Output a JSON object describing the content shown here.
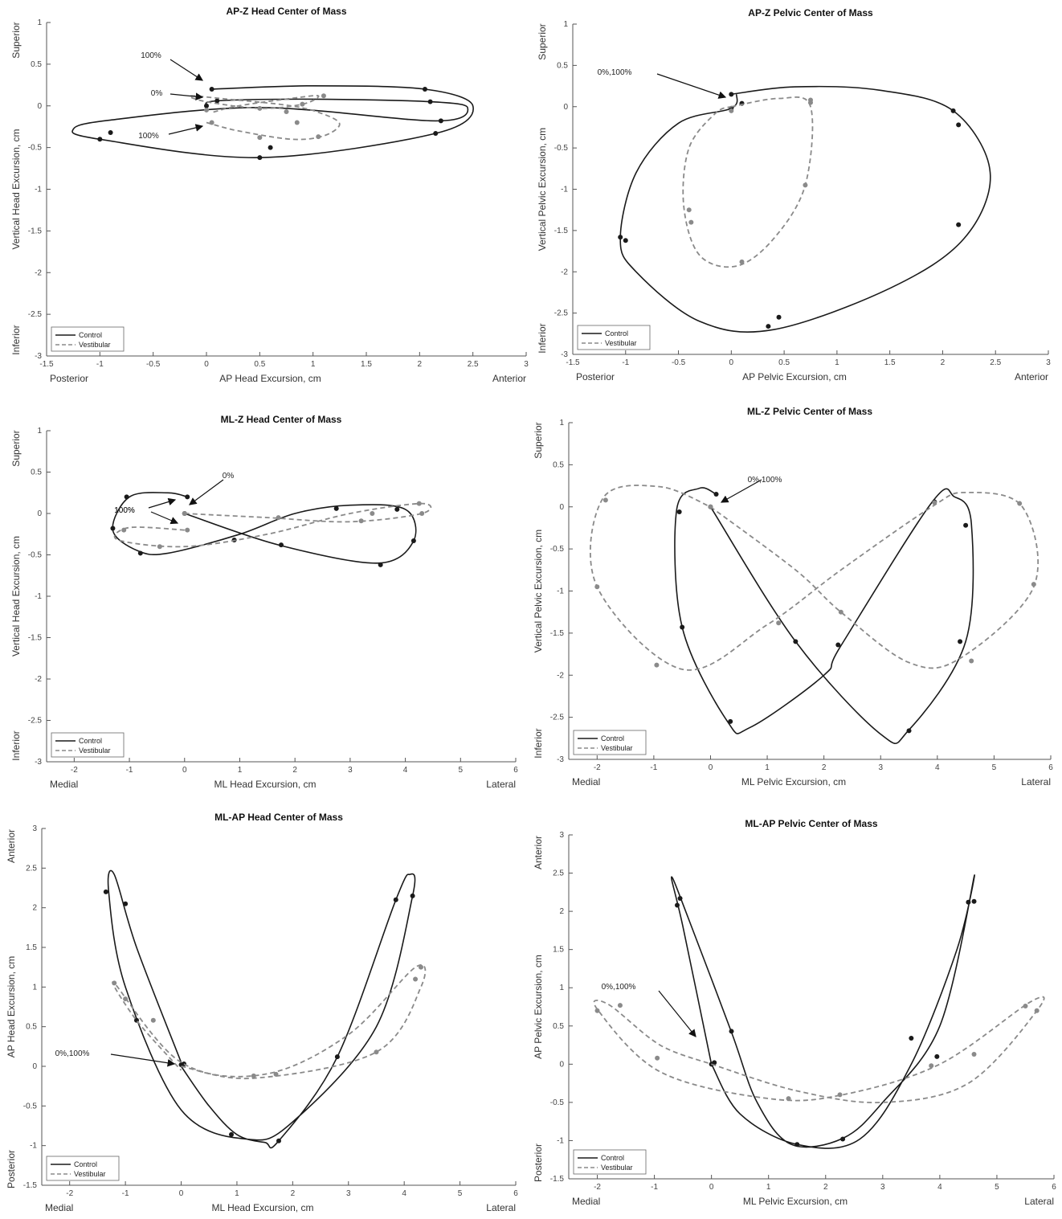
{
  "chart_data": [
    {
      "type": "line",
      "title": "AP-Z Head Center of Mass",
      "xlabel": "AP  Head Excursion, cm",
      "ylabel": "Vertical Head Excursion, cm",
      "x_dir_labels": [
        "Posterior",
        "Anterior"
      ],
      "y_dir_labels": [
        "Superior",
        "Inferior"
      ],
      "xlim": [
        -1.5,
        3
      ],
      "ylim": [
        -3,
        1
      ],
      "xticks": [
        -1.5,
        -1,
        -0.5,
        0,
        0.5,
        1,
        1.5,
        2,
        2.5,
        3
      ],
      "yticks": [
        -3,
        -2.5,
        -2,
        -1.5,
        -1,
        -0.5,
        0,
        0.5,
        1
      ],
      "grid": false,
      "legend_position": "bottom-left",
      "series": [
        {
          "name": "Control",
          "style": "solid",
          "color": "#1a1a1a",
          "x": [
            0.05,
            1.0,
            2.05,
            2.5,
            2.15,
            0.5,
            -1.0,
            -1.25,
            -0.9,
            0.5,
            2.15,
            2.45,
            2.1,
            1.0,
            0.1,
            0.0
          ],
          "y": [
            0.2,
            0.24,
            0.2,
            0.0,
            -0.33,
            -0.62,
            -0.4,
            -0.28,
            -0.17,
            -0.02,
            -0.18,
            -0.02,
            0.05,
            0.08,
            0.06,
            0.0
          ],
          "markers_x": [
            0.05,
            2.05,
            2.15,
            0.5,
            -1.0,
            -0.9,
            0.6,
            2.2,
            2.1,
            0.1,
            0.0
          ],
          "markers_y": [
            0.2,
            0.2,
            -0.33,
            -0.62,
            -0.4,
            -0.32,
            -0.5,
            -0.18,
            0.05,
            0.06,
            0.0
          ]
        },
        {
          "name": "Vestibular",
          "style": "dashed",
          "color": "#8a8a8a",
          "x": [
            0.0,
            0.3,
            0.8,
            1.1,
            1.25,
            1.1,
            0.8,
            0.2,
            -0.15,
            0.0,
            0.5,
            0.9,
            1.05,
            0.8,
            0.3,
            0.05
          ],
          "y": [
            -0.2,
            -0.3,
            -0.4,
            -0.36,
            -0.22,
            -0.1,
            0.0,
            0.08,
            0.12,
            0.05,
            -0.03,
            0.02,
            0.12,
            0.09,
            0.0,
            -0.08
          ],
          "markers_x": [
            0.05,
            0.5,
            0.85,
            1.05,
            0.75,
            0.0,
            0.5,
            0.9,
            1.1
          ],
          "markers_y": [
            -0.2,
            -0.38,
            -0.2,
            -0.37,
            -0.07,
            -0.05,
            -0.03,
            0.02,
            0.12
          ]
        }
      ],
      "annotations": [
        "100%",
        "0%",
        "100%"
      ]
    },
    {
      "type": "line",
      "title": "AP-Z Pelvic Center of Mass",
      "xlabel": "AP  Pelvic Excursion, cm",
      "ylabel": "Vertical Pelvic Excursion, cm",
      "x_dir_labels": [
        "Posterior",
        "Anterior"
      ],
      "y_dir_labels": [
        "Superior",
        "Inferior"
      ],
      "xlim": [
        -1.5,
        3
      ],
      "ylim": [
        -3,
        1
      ],
      "xticks": [
        -1.5,
        -1,
        -0.5,
        0,
        0.5,
        1,
        1.5,
        2,
        2.5,
        3
      ],
      "yticks": [
        -3,
        -2.5,
        -2,
        -1.5,
        -1,
        -0.5,
        0,
        0.5,
        1
      ],
      "grid": false,
      "legend_position": "bottom-left",
      "series": [
        {
          "name": "Control",
          "style": "solid",
          "color": "#1a1a1a",
          "x": [
            0.0,
            0.6,
            1.4,
            2.1,
            2.45,
            2.2,
            1.5,
            0.4,
            -0.3,
            -0.9,
            -1.05,
            -0.9,
            -0.5,
            0.0,
            0.05
          ],
          "y": [
            0.15,
            0.24,
            0.2,
            -0.05,
            -0.8,
            -1.6,
            -2.2,
            -2.7,
            -2.6,
            -2.0,
            -1.6,
            -0.8,
            -0.2,
            -0.02,
            0.15
          ],
          "markers_x": [
            0.0,
            2.1,
            2.15,
            2.15,
            0.45,
            0.35,
            -1.05,
            -1.0,
            0.0,
            0.1
          ],
          "markers_y": [
            0.15,
            -0.05,
            -0.22,
            -1.43,
            -2.55,
            -2.66,
            -1.58,
            -1.62,
            -0.02,
            0.04
          ]
        },
        {
          "name": "Vestibular",
          "style": "dashed",
          "color": "#8a8a8a",
          "x": [
            0.0,
            0.45,
            0.75,
            0.7,
            0.4,
            0.05,
            -0.3,
            -0.45,
            -0.4,
            -0.15,
            0.0
          ],
          "y": [
            0.0,
            0.1,
            0.0,
            -0.95,
            -1.6,
            -1.93,
            -1.8,
            -1.2,
            -0.5,
            -0.08,
            0.0
          ],
          "markers_x": [
            0.0,
            0.75,
            0.7,
            0.1,
            -0.38,
            -0.4,
            0.75
          ],
          "markers_y": [
            -0.05,
            0.05,
            -0.95,
            -1.88,
            -1.4,
            -1.25,
            0.08
          ]
        }
      ],
      "annotations": [
        "0%,100%"
      ]
    },
    {
      "type": "line",
      "title": "ML-Z Head Center of Mass",
      "xlabel": "ML  Head Excursion, cm",
      "ylabel": "Vertical Head Excursion, cm",
      "x_dir_labels": [
        "Medial",
        "Lateral"
      ],
      "y_dir_labels": [
        "Superior",
        "Inferior"
      ],
      "xlim": [
        -2.5,
        6
      ],
      "ylim": [
        -3,
        1
      ],
      "xticks": [
        -2,
        -1,
        0,
        1,
        2,
        3,
        4,
        5,
        6
      ],
      "yticks": [
        -3,
        -2.5,
        -2,
        -1.5,
        -1,
        -0.5,
        0,
        0.5,
        1
      ],
      "grid": false,
      "legend_position": "bottom-left",
      "series": [
        {
          "name": "Control",
          "style": "solid",
          "color": "#1a1a1a",
          "x": [
            0.0,
            1.7,
            3.5,
            4.15,
            4.0,
            3.0,
            2.0,
            1.0,
            -0.3,
            -0.85,
            -1.3,
            -1.0,
            -0.3,
            0.05
          ],
          "y": [
            0.0,
            -0.38,
            -0.6,
            -0.33,
            0.05,
            0.1,
            0.0,
            -0.25,
            -0.48,
            -0.45,
            -0.2,
            0.2,
            0.25,
            0.2
          ],
          "markers_x": [
            0.0,
            1.75,
            3.55,
            4.15,
            3.85,
            2.75,
            0.9,
            -0.8,
            -1.3,
            -1.05,
            0.05
          ],
          "markers_y": [
            0.0,
            -0.38,
            -0.62,
            -0.33,
            0.05,
            0.06,
            -0.32,
            -0.48,
            -0.18,
            0.2,
            0.2
          ]
        },
        {
          "name": "Vestibular",
          "style": "dashed",
          "color": "#8a8a8a",
          "x": [
            0.0,
            1.5,
            3.0,
            4.3,
            4.3,
            3.0,
            1.5,
            0.0,
            -1.2,
            -1.0,
            0.0
          ],
          "y": [
            0.0,
            -0.05,
            -0.1,
            0.0,
            0.12,
            0.0,
            -0.25,
            -0.4,
            -0.32,
            -0.17,
            -0.2
          ],
          "markers_x": [
            0.0,
            1.7,
            3.2,
            4.3,
            4.25,
            3.4,
            -0.45,
            -1.1,
            0.05
          ],
          "markers_y": [
            0.0,
            -0.05,
            -0.09,
            0.0,
            0.12,
            0.0,
            -0.4,
            -0.2,
            -0.2
          ]
        }
      ],
      "annotations": [
        "0%",
        "100%"
      ]
    },
    {
      "type": "line",
      "title": "ML-Z Pelvic Center of Mass",
      "xlabel": "ML  Pelvic Excursion, cm",
      "ylabel": "Vertical Pelvic Excursion, cm",
      "x_dir_labels": [
        "Medial",
        "Lateral"
      ],
      "y_dir_labels": [
        "Superior",
        "Inferior"
      ],
      "xlim": [
        -2.5,
        6
      ],
      "ylim": [
        -3,
        1
      ],
      "xticks": [
        -2,
        -1,
        0,
        1,
        2,
        3,
        4,
        5,
        6
      ],
      "yticks": [
        -3,
        -2.5,
        -2,
        -1.5,
        -1,
        -0.5,
        0,
        0.5,
        1
      ],
      "grid": false,
      "legend_position": "bottom-left",
      "series": [
        {
          "name": "Control",
          "style": "solid",
          "color": "#1a1a1a",
          "x": [
            0.0,
            1.5,
            3.0,
            3.5,
            4.5,
            4.6,
            4.3,
            3.9,
            2.3,
            2.0,
            0.7,
            0.3,
            -0.5,
            -0.6,
            -0.2,
            0.1
          ],
          "y": [
            0.0,
            -1.6,
            -2.7,
            -2.65,
            -1.6,
            -0.2,
            0.12,
            0.05,
            -1.65,
            -2.0,
            -2.62,
            -2.55,
            -1.43,
            -0.05,
            0.22,
            0.15
          ],
          "markers_x": [
            0.0,
            1.5,
            3.5,
            4.4,
            4.5,
            3.95,
            2.25,
            0.35,
            -0.5,
            -0.55,
            0.1
          ],
          "markers_y": [
            0.0,
            -1.6,
            -2.66,
            -1.6,
            -0.22,
            0.06,
            -1.64,
            -2.55,
            -1.43,
            -0.06,
            0.15
          ]
        },
        {
          "name": "Vestibular",
          "style": "dashed",
          "color": "#8a8a8a",
          "x": [
            0.0,
            1.5,
            2.3,
            3.5,
            4.4,
            5.7,
            5.5,
            4.5,
            3.9,
            2.3,
            1.0,
            -0.5,
            -2.0,
            -1.9,
            -0.9,
            0.0
          ],
          "y": [
            0.0,
            -0.75,
            -1.25,
            -1.85,
            -1.8,
            -0.95,
            0.0,
            0.17,
            0.0,
            -0.75,
            -1.4,
            -1.93,
            -0.95,
            0.1,
            0.24,
            0.0
          ],
          "markers_x": [
            0.0,
            2.3,
            4.6,
            5.7,
            5.45,
            3.95,
            1.2,
            -0.95,
            -2.0,
            -1.85
          ],
          "markers_y": [
            0.0,
            -1.25,
            -1.83,
            -0.92,
            0.04,
            0.05,
            -1.38,
            -1.88,
            -0.95,
            0.08
          ]
        }
      ],
      "annotations": [
        "0%,100%"
      ]
    },
    {
      "type": "line",
      "title": "ML-AP Head Center of Mass",
      "xlabel": "ML  Head Excursion, cm",
      "ylabel": "AP Head Excursion, cm",
      "x_dir_labels": [
        "Medial",
        "Lateral"
      ],
      "y_dir_labels": [
        "Anterior",
        "Posterior"
      ],
      "xlim": [
        -2.5,
        6
      ],
      "ylim": [
        -1.5,
        3
      ],
      "xticks": [
        -2,
        -1,
        0,
        1,
        2,
        3,
        4,
        5,
        6
      ],
      "yticks": [
        -1.5,
        -1,
        -0.5,
        0,
        0.5,
        1,
        1.5,
        2,
        2.5,
        3
      ],
      "grid": false,
      "legend_position": "bottom-left",
      "series": [
        {
          "name": "Control",
          "style": "solid",
          "color": "#1a1a1a",
          "x": [
            0.0,
            0.5,
            1.0,
            1.5,
            1.75,
            2.8,
            3.85,
            4.1,
            4.15,
            3.5,
            2.0,
            1.2,
            0.0,
            -1.0,
            -1.3,
            -1.2,
            -0.8,
            0.0
          ],
          "y": [
            0.0,
            -0.5,
            -0.86,
            -0.96,
            -0.94,
            0.12,
            2.1,
            2.42,
            2.15,
            0.5,
            -0.7,
            -0.92,
            -0.55,
            1.0,
            2.2,
            2.42,
            1.5,
            0.05
          ],
          "markers_x": [
            0.0,
            0.9,
            1.75,
            2.8,
            3.85,
            4.15,
            -1.35,
            -1.0,
            -0.8,
            0.05
          ],
          "markers_y": [
            0.02,
            -0.86,
            -0.94,
            0.12,
            2.1,
            2.15,
            2.2,
            2.05,
            0.58,
            0.03
          ]
        },
        {
          "name": "Vestibular",
          "style": "dashed",
          "color": "#8a8a8a",
          "x": [
            0.0,
            1.3,
            3.5,
            4.3,
            4.2,
            3.0,
            1.5,
            0.0,
            -1.2,
            -0.8,
            0.0
          ],
          "y": [
            0.0,
            -0.15,
            0.18,
            1.0,
            1.25,
            0.4,
            -0.1,
            0.05,
            1.05,
            0.58,
            -0.05
          ],
          "markers_x": [
            1.3,
            1.7,
            3.5,
            4.2,
            4.3,
            -1.2,
            -1.0,
            -0.5
          ],
          "markers_y": [
            -0.12,
            -0.1,
            0.18,
            1.1,
            1.25,
            1.05,
            0.85,
            0.58
          ]
        }
      ],
      "annotations": [
        "0%,100%"
      ]
    },
    {
      "type": "line",
      "title": "ML-AP Pelvic Center of Mass",
      "xlabel": "ML  Pelvic Excursion, cm",
      "ylabel": "AP Pelvic Excursion, cm",
      "x_dir_labels": [
        "Medial",
        "Lateral"
      ],
      "y_dir_labels": [
        "Anterior",
        "Posterior"
      ],
      "xlim": [
        -2.5,
        6
      ],
      "ylim": [
        -1.5,
        3
      ],
      "xticks": [
        -2,
        -1,
        0,
        1,
        2,
        3,
        4,
        5,
        6
      ],
      "yticks": [
        -1.5,
        -1,
        -0.5,
        0,
        0.5,
        1,
        1.5,
        2,
        2.5,
        3
      ],
      "grid": false,
      "legend_position": "bottom-left",
      "series": [
        {
          "name": "Control",
          "style": "solid",
          "color": "#1a1a1a",
          "x": [
            0.0,
            0.5,
            1.5,
            2.6,
            3.5,
            4.3,
            4.6,
            4.0,
            3.0,
            2.3,
            1.4,
            0.8,
            0.35,
            -0.4,
            -0.7,
            -0.5,
            0.0
          ],
          "y": [
            0.0,
            -0.65,
            -1.05,
            -0.98,
            0.0,
            1.5,
            2.45,
            0.5,
            -0.5,
            -0.97,
            -1.05,
            -0.5,
            0.42,
            1.9,
            2.45,
            1.8,
            0.0
          ],
          "markers_x": [
            0.0,
            1.5,
            2.3,
            3.5,
            3.95,
            4.5,
            4.6,
            -0.6,
            -0.55,
            0.35,
            0.05
          ],
          "markers_y": [
            0.0,
            -1.05,
            -0.98,
            0.34,
            0.1,
            2.12,
            2.13,
            2.08,
            2.17,
            0.43,
            0.02
          ]
        },
        {
          "name": "Vestibular",
          "style": "dashed",
          "color": "#8a8a8a",
          "x": [
            0.0,
            1.5,
            3.0,
            4.5,
            5.7,
            5.6,
            4.0,
            2.3,
            1.0,
            -0.9,
            -2.0,
            -1.8,
            -0.9,
            0.0
          ],
          "y": [
            0.0,
            -0.35,
            -0.5,
            -0.25,
            0.7,
            0.82,
            0.0,
            -0.4,
            -0.45,
            -0.1,
            0.72,
            0.78,
            0.25,
            0.0
          ],
          "markers_x": [
            1.35,
            2.25,
            3.85,
            4.6,
            5.5,
            5.7,
            -1.6,
            -2.0,
            -0.95
          ],
          "markers_y": [
            -0.45,
            -0.4,
            -0.02,
            0.13,
            0.76,
            0.7,
            0.77,
            0.7,
            0.08
          ]
        }
      ],
      "annotations": [
        "0%,100%"
      ]
    }
  ]
}
